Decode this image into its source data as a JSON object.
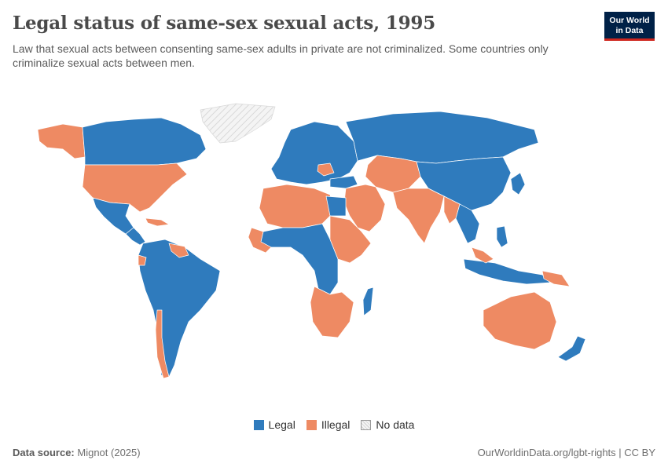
{
  "header": {
    "title": "Legal status of same-sex sexual acts, 1995",
    "subtitle": "Law that sexual acts between consenting same-sex adults in private are not criminalized. Some countries only criminalize sexual acts between men."
  },
  "logo": {
    "line1": "Our World",
    "line2": "in Data"
  },
  "legend": [
    {
      "label": "Legal",
      "color": "#2f7bbd"
    },
    {
      "label": "Illegal",
      "color": "#ee8a63"
    },
    {
      "label": "No data",
      "color": "#f2f2f2"
    }
  ],
  "footer": {
    "source_label": "Data source:",
    "source_value": "Mignot (2025)",
    "url": "OurWorldinData.org/lgbt-rights | CC BY"
  },
  "colors": {
    "legal": "#2f7bbd",
    "illegal": "#ee8a63",
    "no_data": "#eeeeee",
    "border": "#ffffff"
  }
}
